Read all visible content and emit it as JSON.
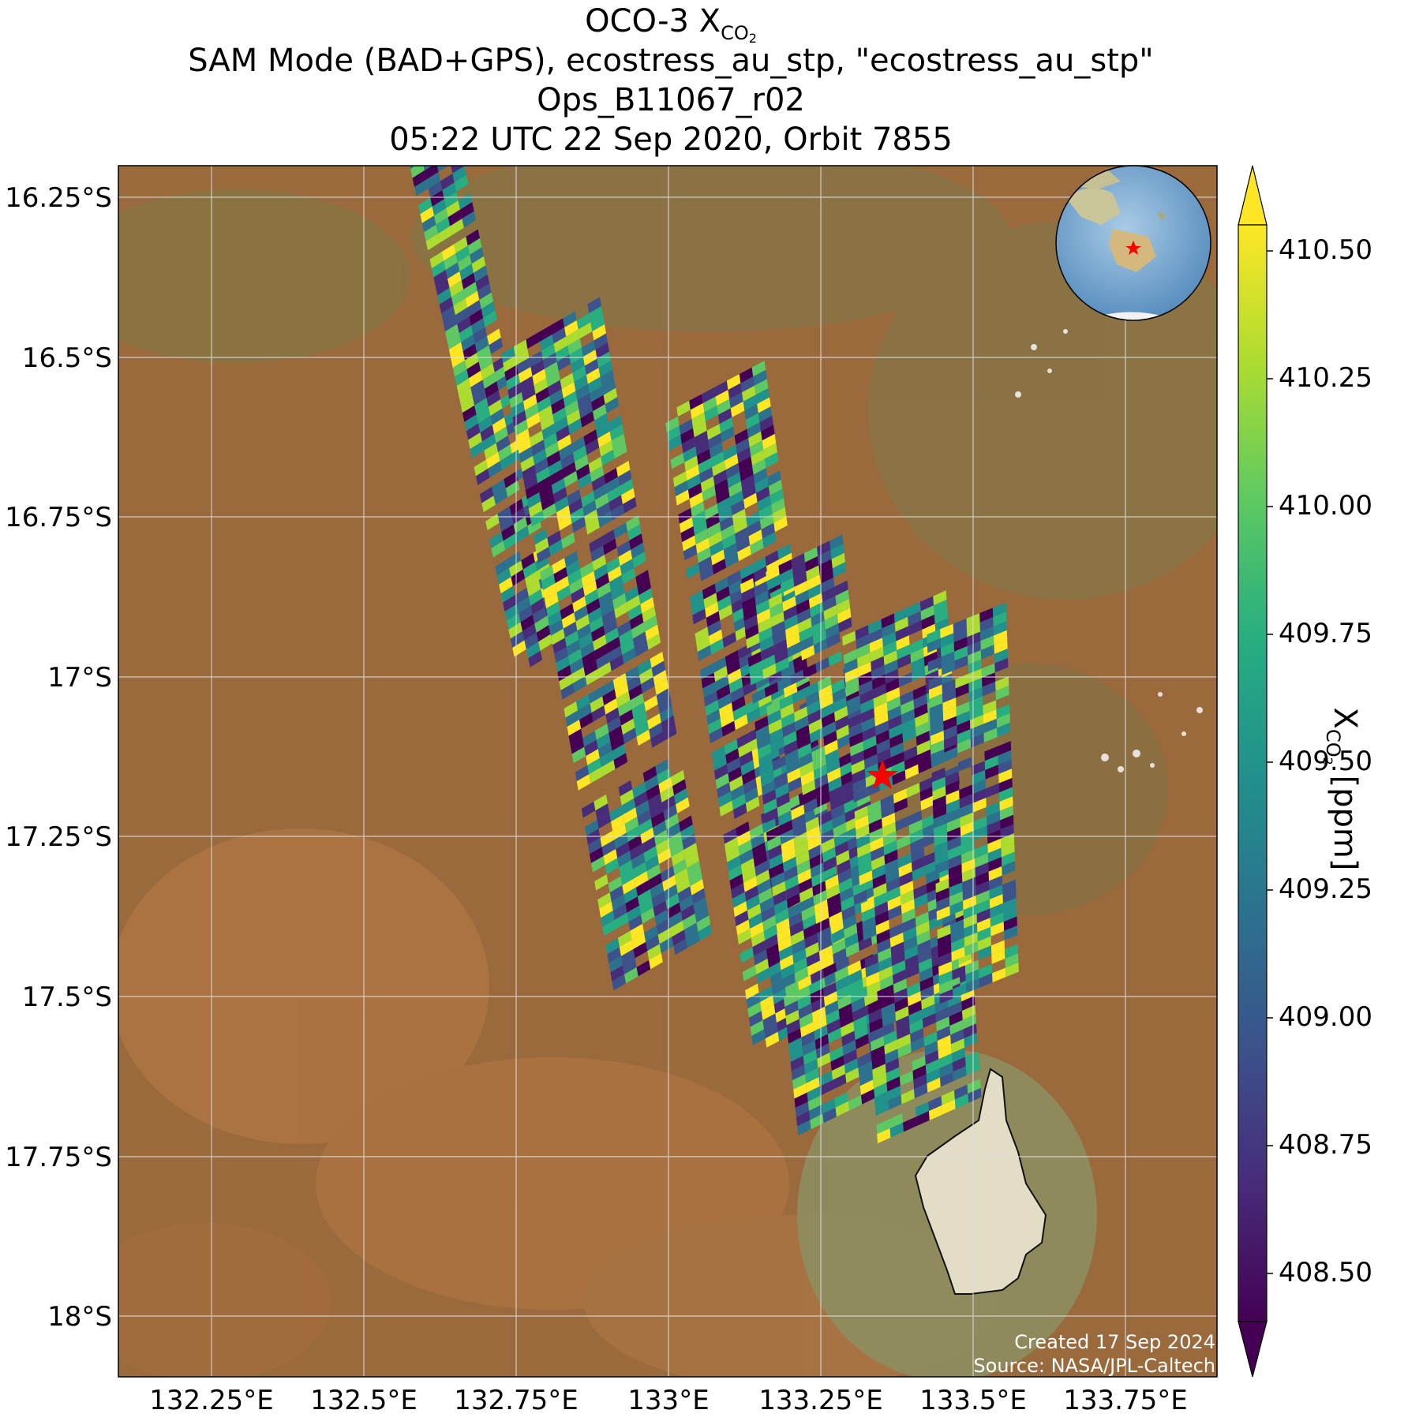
{
  "title": {
    "line1_main": "OCO-3 X",
    "line1_sub": "CO",
    "line1_subsub": "2",
    "line2": "SAM Mode (BAD+GPS), ecostress_au_stp, \"ecostress_au_stp\"",
    "line3": "Ops_B11067_r02",
    "line4": "05:22 UTC 22 Sep 2020, Orbit 7855"
  },
  "map": {
    "lat_ticks": [
      "16.25°S",
      "16.5°S",
      "16.75°S",
      "17°S",
      "17.25°S",
      "17.5°S",
      "17.75°S",
      "18°S"
    ],
    "lon_ticks": [
      "132.25°E",
      "132.5°E",
      "132.75°E",
      "133°E",
      "133.25°E",
      "133.5°E",
      "133.75°E"
    ],
    "credit_line1": "Created 17 Sep 2024",
    "credit_line2": "Source: NASA/JPL-Caltech",
    "inset": "globe-locator",
    "marker": "red-star"
  },
  "colorbar": {
    "label_main": "X",
    "label_sub": "CO",
    "label_subsub": "2",
    "label_units": " [ppm]",
    "ticks": [
      "410.50",
      "410.25",
      "410.00",
      "409.75",
      "409.50",
      "409.25",
      "409.00",
      "408.75",
      "408.50"
    ],
    "colormap": "viridis",
    "colors": [
      "#440154",
      "#472c7a",
      "#3b528b",
      "#2c728e",
      "#21918c",
      "#28ae80",
      "#5ec962",
      "#addc30",
      "#fde725"
    ]
  },
  "chart_data": {
    "type": "heatmap",
    "variable": "XCO2",
    "units": "ppm",
    "x_range": [
      132.1,
      133.9
    ],
    "y_range": [
      -18.1,
      -16.2
    ],
    "value_range": [
      408.4,
      410.6
    ],
    "target_marker": {
      "lon": 133.35,
      "lat": -17.15
    },
    "swaths": [
      {
        "lon": 132.7,
        "lat": -16.55,
        "cols": 4,
        "rows": 60
      },
      {
        "lon": 132.9,
        "lat": -16.95,
        "cols": 8,
        "rows": 70
      },
      {
        "lon": 133.15,
        "lat": -17.05,
        "cols": 8,
        "rows": 70
      },
      {
        "lon": 133.25,
        "lat": -17.25,
        "cols": 8,
        "rows": 60
      },
      {
        "lon": 133.4,
        "lat": -17.3,
        "cols": 8,
        "rows": 55
      },
      {
        "lon": 133.5,
        "lat": -17.2,
        "cols": 6,
        "rows": 40
      }
    ]
  }
}
